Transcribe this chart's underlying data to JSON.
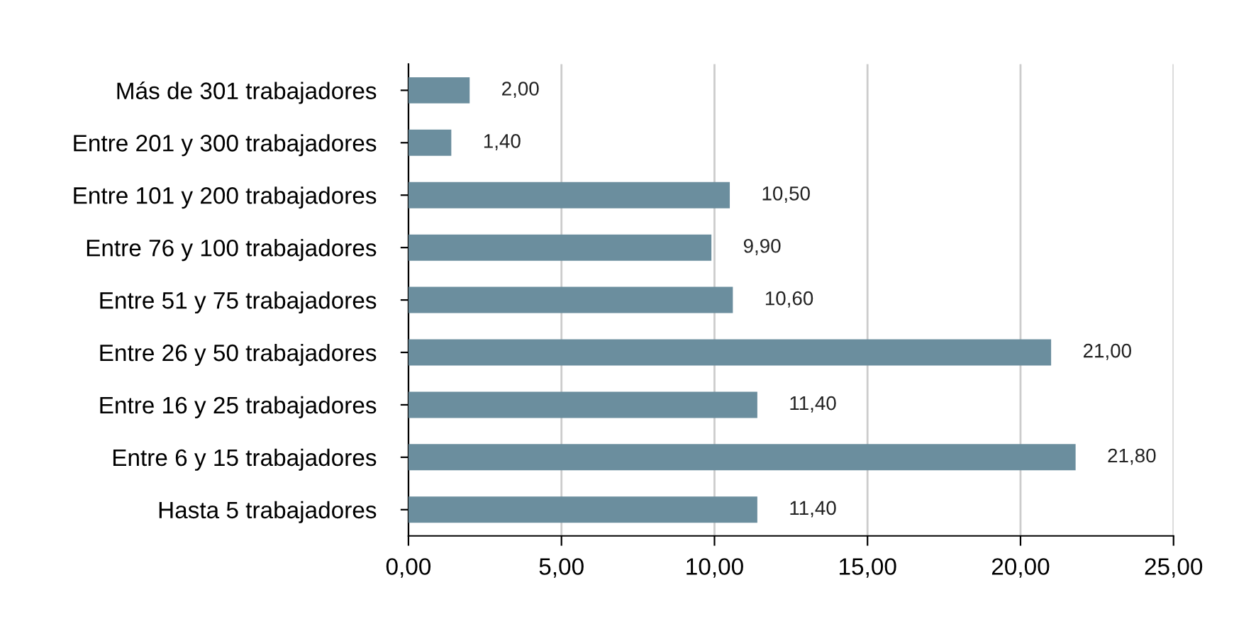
{
  "chart_data": {
    "type": "bar",
    "orientation": "horizontal",
    "categories": [
      "Más de 301 trabajadores",
      "Entre 201 y 300 trabajadores",
      "Entre 101 y 200 trabajadores",
      "Entre 76 y 100 trabajadores",
      "Entre 51 y 75 trabajadores",
      "Entre 26 y 50 trabajadores",
      "Entre 16 y 25 trabajadores",
      "Entre 6 y 15 trabajadores",
      "Hasta 5 trabajadores"
    ],
    "values": [
      2.0,
      1.4,
      10.5,
      9.9,
      10.6,
      21.0,
      11.4,
      21.8,
      11.4
    ],
    "value_labels": [
      "2,00",
      "1,40",
      "10,50",
      "9,90",
      "10,60",
      "21,00",
      "11,40",
      "21,80",
      "11,40"
    ],
    "color": "#6b8e9e",
    "xlim": [
      0,
      25
    ],
    "xticks": [
      {
        "value": 0,
        "label": "0,00"
      },
      {
        "value": 5,
        "label": "5,00"
      },
      {
        "value": 10,
        "label": "10,00"
      },
      {
        "value": 15,
        "label": "15,00"
      },
      {
        "value": 20,
        "label": "20,00"
      },
      {
        "value": 25,
        "label": "25,00"
      }
    ],
    "grid": "x",
    "legend": false
  }
}
